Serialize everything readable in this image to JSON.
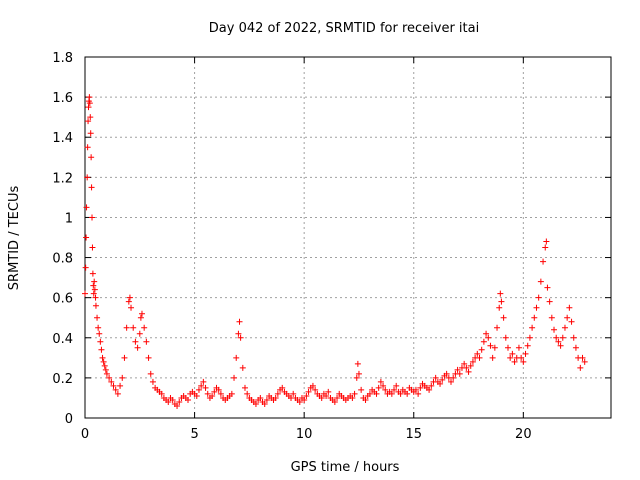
{
  "chart_data": {
    "type": "scatter",
    "title": "Day 042 of 2022, SRMTID for receiver itai",
    "xlabel": "GPS time / hours",
    "ylabel": "SRMTID / TECUs",
    "xlim": [
      0,
      24
    ],
    "ylim": [
      0,
      1.8
    ],
    "xticks": [
      0,
      5,
      10,
      15,
      20
    ],
    "xtick_labels": [
      "0",
      "5",
      "10",
      "15",
      "20"
    ],
    "yticks": [
      0,
      0.2,
      0.4,
      0.6,
      0.8,
      1,
      1.2,
      1.4,
      1.6,
      1.8
    ],
    "ytick_labels": [
      "0",
      "0.2",
      "0.4",
      "0.6",
      "0.8",
      "1",
      "1.2",
      "1.4",
      "1.6",
      "1.8"
    ],
    "grid": true,
    "marker": "+",
    "color": "#ff0000",
    "series": [
      {
        "name": "SRMTID",
        "points": [
          [
            0.0,
            0.62
          ],
          [
            0.03,
            0.75
          ],
          [
            0.05,
            0.9
          ],
          [
            0.07,
            1.05
          ],
          [
            0.1,
            1.2
          ],
          [
            0.12,
            1.35
          ],
          [
            0.14,
            1.48
          ],
          [
            0.16,
            1.55
          ],
          [
            0.18,
            1.58
          ],
          [
            0.2,
            1.6
          ],
          [
            0.22,
            1.57
          ],
          [
            0.24,
            1.5
          ],
          [
            0.26,
            1.42
          ],
          [
            0.28,
            1.3
          ],
          [
            0.3,
            1.15
          ],
          [
            0.32,
            1.0
          ],
          [
            0.34,
            0.85
          ],
          [
            0.36,
            0.72
          ],
          [
            0.38,
            0.66
          ],
          [
            0.4,
            0.62
          ],
          [
            0.42,
            0.68
          ],
          [
            0.45,
            0.64
          ],
          [
            0.48,
            0.6
          ],
          [
            0.5,
            0.56
          ],
          [
            0.55,
            0.5
          ],
          [
            0.6,
            0.45
          ],
          [
            0.65,
            0.42
          ],
          [
            0.7,
            0.38
          ],
          [
            0.75,
            0.34
          ],
          [
            0.8,
            0.3
          ],
          [
            0.85,
            0.28
          ],
          [
            0.9,
            0.26
          ],
          [
            0.95,
            0.24
          ],
          [
            1.0,
            0.22
          ],
          [
            1.1,
            0.2
          ],
          [
            1.2,
            0.18
          ],
          [
            1.3,
            0.16
          ],
          [
            1.4,
            0.14
          ],
          [
            1.5,
            0.12
          ],
          [
            1.6,
            0.16
          ],
          [
            1.7,
            0.2
          ],
          [
            1.8,
            0.3
          ],
          [
            1.9,
            0.45
          ],
          [
            2.0,
            0.58
          ],
          [
            2.05,
            0.6
          ],
          [
            2.1,
            0.55
          ],
          [
            2.2,
            0.45
          ],
          [
            2.3,
            0.38
          ],
          [
            2.4,
            0.35
          ],
          [
            2.5,
            0.42
          ],
          [
            2.55,
            0.5
          ],
          [
            2.6,
            0.52
          ],
          [
            2.7,
            0.45
          ],
          [
            2.8,
            0.38
          ],
          [
            2.9,
            0.3
          ],
          [
            3.0,
            0.22
          ],
          [
            3.1,
            0.18
          ],
          [
            3.2,
            0.15
          ],
          [
            3.3,
            0.14
          ],
          [
            3.4,
            0.13
          ],
          [
            3.5,
            0.12
          ],
          [
            3.6,
            0.1
          ],
          [
            3.7,
            0.09
          ],
          [
            3.8,
            0.08
          ],
          [
            3.9,
            0.1
          ],
          [
            4.0,
            0.09
          ],
          [
            4.1,
            0.07
          ],
          [
            4.2,
            0.06
          ],
          [
            4.3,
            0.08
          ],
          [
            4.4,
            0.1
          ],
          [
            4.5,
            0.11
          ],
          [
            4.6,
            0.1
          ],
          [
            4.7,
            0.09
          ],
          [
            4.8,
            0.12
          ],
          [
            4.9,
            0.13
          ],
          [
            5.0,
            0.12
          ],
          [
            5.1,
            0.11
          ],
          [
            5.2,
            0.14
          ],
          [
            5.3,
            0.16
          ],
          [
            5.4,
            0.18
          ],
          [
            5.5,
            0.15
          ],
          [
            5.6,
            0.12
          ],
          [
            5.7,
            0.1
          ],
          [
            5.8,
            0.11
          ],
          [
            5.9,
            0.13
          ],
          [
            6.0,
            0.15
          ],
          [
            6.1,
            0.14
          ],
          [
            6.2,
            0.12
          ],
          [
            6.3,
            0.1
          ],
          [
            6.4,
            0.09
          ],
          [
            6.5,
            0.1
          ],
          [
            6.6,
            0.11
          ],
          [
            6.7,
            0.12
          ],
          [
            6.8,
            0.2
          ],
          [
            6.9,
            0.3
          ],
          [
            7.0,
            0.42
          ],
          [
            7.05,
            0.48
          ],
          [
            7.1,
            0.4
          ],
          [
            7.2,
            0.25
          ],
          [
            7.3,
            0.15
          ],
          [
            7.4,
            0.12
          ],
          [
            7.5,
            0.1
          ],
          [
            7.6,
            0.09
          ],
          [
            7.7,
            0.08
          ],
          [
            7.8,
            0.07
          ],
          [
            7.9,
            0.09
          ],
          [
            8.0,
            0.1
          ],
          [
            8.1,
            0.08
          ],
          [
            8.2,
            0.07
          ],
          [
            8.3,
            0.09
          ],
          [
            8.4,
            0.11
          ],
          [
            8.5,
            0.1
          ],
          [
            8.6,
            0.09
          ],
          [
            8.7,
            0.1
          ],
          [
            8.8,
            0.12
          ],
          [
            8.9,
            0.14
          ],
          [
            9.0,
            0.15
          ],
          [
            9.1,
            0.13
          ],
          [
            9.2,
            0.12
          ],
          [
            9.3,
            0.11
          ],
          [
            9.4,
            0.1
          ],
          [
            9.5,
            0.12
          ],
          [
            9.6,
            0.1
          ],
          [
            9.7,
            0.09
          ],
          [
            9.8,
            0.08
          ],
          [
            9.9,
            0.1
          ],
          [
            10.0,
            0.09
          ],
          [
            10.1,
            0.11
          ],
          [
            10.2,
            0.13
          ],
          [
            10.3,
            0.15
          ],
          [
            10.4,
            0.16
          ],
          [
            10.5,
            0.14
          ],
          [
            10.6,
            0.12
          ],
          [
            10.7,
            0.11
          ],
          [
            10.8,
            0.1
          ],
          [
            10.9,
            0.12
          ],
          [
            11.0,
            0.11
          ],
          [
            11.1,
            0.13
          ],
          [
            11.2,
            0.1
          ],
          [
            11.3,
            0.09
          ],
          [
            11.4,
            0.08
          ],
          [
            11.5,
            0.1
          ],
          [
            11.6,
            0.12
          ],
          [
            11.7,
            0.11
          ],
          [
            11.8,
            0.1
          ],
          [
            11.9,
            0.09
          ],
          [
            12.0,
            0.1
          ],
          [
            12.1,
            0.11
          ],
          [
            12.2,
            0.1
          ],
          [
            12.3,
            0.12
          ],
          [
            12.4,
            0.2
          ],
          [
            12.45,
            0.27
          ],
          [
            12.5,
            0.22
          ],
          [
            12.6,
            0.14
          ],
          [
            12.7,
            0.1
          ],
          [
            12.8,
            0.09
          ],
          [
            12.9,
            0.11
          ],
          [
            13.0,
            0.12
          ],
          [
            13.1,
            0.14
          ],
          [
            13.2,
            0.13
          ],
          [
            13.3,
            0.12
          ],
          [
            13.4,
            0.15
          ],
          [
            13.5,
            0.18
          ],
          [
            13.6,
            0.16
          ],
          [
            13.7,
            0.14
          ],
          [
            13.8,
            0.12
          ],
          [
            13.9,
            0.13
          ],
          [
            14.0,
            0.12
          ],
          [
            14.1,
            0.14
          ],
          [
            14.2,
            0.16
          ],
          [
            14.3,
            0.13
          ],
          [
            14.4,
            0.12
          ],
          [
            14.5,
            0.14
          ],
          [
            14.6,
            0.13
          ],
          [
            14.7,
            0.12
          ],
          [
            14.8,
            0.15
          ],
          [
            14.9,
            0.14
          ],
          [
            15.0,
            0.13
          ],
          [
            15.1,
            0.14
          ],
          [
            15.2,
            0.12
          ],
          [
            15.3,
            0.15
          ],
          [
            15.4,
            0.17
          ],
          [
            15.5,
            0.16
          ],
          [
            15.6,
            0.15
          ],
          [
            15.7,
            0.14
          ],
          [
            15.8,
            0.16
          ],
          [
            15.9,
            0.18
          ],
          [
            16.0,
            0.2
          ],
          [
            16.1,
            0.18
          ],
          [
            16.2,
            0.17
          ],
          [
            16.3,
            0.19
          ],
          [
            16.4,
            0.21
          ],
          [
            16.5,
            0.22
          ],
          [
            16.6,
            0.2
          ],
          [
            16.7,
            0.18
          ],
          [
            16.8,
            0.2
          ],
          [
            16.9,
            0.22
          ],
          [
            17.0,
            0.24
          ],
          [
            17.1,
            0.22
          ],
          [
            17.2,
            0.25
          ],
          [
            17.3,
            0.27
          ],
          [
            17.4,
            0.25
          ],
          [
            17.5,
            0.23
          ],
          [
            17.6,
            0.26
          ],
          [
            17.7,
            0.28
          ],
          [
            17.8,
            0.3
          ],
          [
            17.9,
            0.32
          ],
          [
            18.0,
            0.3
          ],
          [
            18.1,
            0.34
          ],
          [
            18.2,
            0.38
          ],
          [
            18.3,
            0.42
          ],
          [
            18.4,
            0.4
          ],
          [
            18.5,
            0.36
          ],
          [
            18.6,
            0.3
          ],
          [
            18.7,
            0.35
          ],
          [
            18.8,
            0.45
          ],
          [
            18.9,
            0.55
          ],
          [
            18.95,
            0.62
          ],
          [
            19.0,
            0.58
          ],
          [
            19.1,
            0.5
          ],
          [
            19.2,
            0.4
          ],
          [
            19.3,
            0.35
          ],
          [
            19.4,
            0.3
          ],
          [
            19.5,
            0.32
          ],
          [
            19.6,
            0.28
          ],
          [
            19.7,
            0.3
          ],
          [
            19.8,
            0.35
          ],
          [
            19.9,
            0.3
          ],
          [
            20.0,
            0.28
          ],
          [
            20.1,
            0.32
          ],
          [
            20.2,
            0.36
          ],
          [
            20.3,
            0.4
          ],
          [
            20.4,
            0.45
          ],
          [
            20.5,
            0.5
          ],
          [
            20.6,
            0.55
          ],
          [
            20.7,
            0.6
          ],
          [
            20.8,
            0.68
          ],
          [
            20.9,
            0.78
          ],
          [
            21.0,
            0.85
          ],
          [
            21.05,
            0.88
          ],
          [
            21.1,
            0.65
          ],
          [
            21.2,
            0.58
          ],
          [
            21.3,
            0.5
          ],
          [
            21.4,
            0.44
          ],
          [
            21.5,
            0.4
          ],
          [
            21.6,
            0.38
          ],
          [
            21.7,
            0.36
          ],
          [
            21.8,
            0.4
          ],
          [
            21.9,
            0.45
          ],
          [
            22.0,
            0.5
          ],
          [
            22.1,
            0.55
          ],
          [
            22.2,
            0.48
          ],
          [
            22.3,
            0.4
          ],
          [
            22.4,
            0.35
          ],
          [
            22.5,
            0.3
          ],
          [
            22.6,
            0.25
          ],
          [
            22.7,
            0.3
          ],
          [
            22.8,
            0.28
          ]
        ]
      }
    ]
  }
}
